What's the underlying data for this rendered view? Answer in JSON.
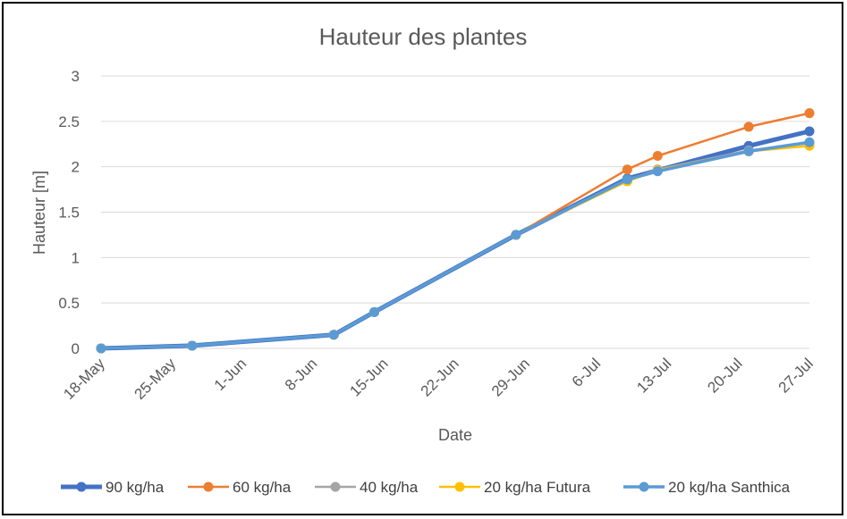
{
  "chart_data": {
    "type": "line",
    "title": "Hauteur des plantes",
    "xlabel": "Date",
    "ylabel": "Hauteur [m]",
    "ylim": [
      0,
      3
    ],
    "yticks": [
      "0",
      "0.5",
      "1",
      "1.5",
      "2",
      "2.5",
      "3"
    ],
    "x_tick_labels": [
      "18-May",
      "25-May",
      "1-Jun",
      "8-Jun",
      "15-Jun",
      "22-Jun",
      "29-Jun",
      "6-Jul",
      "13-Jul",
      "20-Jul",
      "27-Jul"
    ],
    "x_tick_dates": [
      "2021-05-18",
      "2021-05-25",
      "2021-06-01",
      "2021-06-08",
      "2021-06-15",
      "2021-06-22",
      "2021-06-29",
      "2021-07-06",
      "2021-07-13",
      "2021-07-20",
      "2021-07-27"
    ],
    "x": [
      "2021-05-18",
      "2021-05-27",
      "2021-06-10",
      "2021-06-14",
      "2021-06-28",
      "2021-07-09",
      "2021-07-12",
      "2021-07-21",
      "2021-07-27"
    ],
    "grid": "horizontal",
    "legend": "bottom",
    "series": [
      {
        "name": "90 kg/ha",
        "color": "#4472C4",
        "width": 5,
        "values": [
          0.0,
          0.03,
          0.15,
          0.4,
          1.25,
          1.87,
          1.96,
          2.23,
          2.39
        ]
      },
      {
        "name": "60 kg/ha",
        "color": "#ED7D31",
        "width": 2.5,
        "values": [
          0.0,
          0.03,
          0.15,
          0.4,
          1.25,
          1.97,
          2.12,
          2.44,
          2.59
        ]
      },
      {
        "name": "40 kg/ha",
        "color": "#A5A5A5",
        "width": 2.5,
        "values": [
          0.0,
          0.03,
          0.15,
          0.4,
          1.25,
          1.85,
          1.97,
          2.18,
          2.26
        ]
      },
      {
        "name": "20 kg/ha Futura",
        "color": "#FFC000",
        "width": 2.5,
        "values": [
          0.0,
          0.03,
          0.15,
          0.4,
          1.25,
          1.84,
          1.96,
          2.17,
          2.23
        ]
      },
      {
        "name": "20 kg/ha Santhica",
        "color": "#5B9BD5",
        "width": 3.5,
        "values": [
          0.0,
          0.03,
          0.15,
          0.4,
          1.25,
          1.86,
          1.95,
          2.17,
          2.27
        ]
      }
    ]
  }
}
